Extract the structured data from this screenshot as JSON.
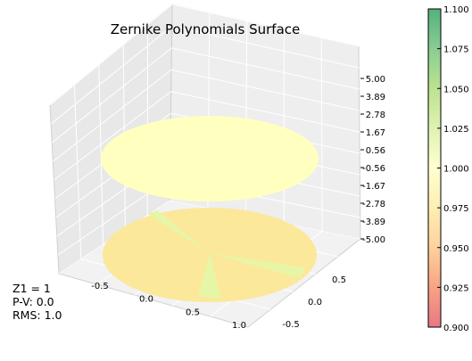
{
  "chart_data": {
    "type": "surface",
    "title": "Zernike Polynomials Surface",
    "xlabel": "",
    "ylabel": "",
    "zlabel": "",
    "x_ticks": [
      "-0.5",
      "0.0",
      "0.5",
      "1.0"
    ],
    "y_ticks": [
      "-0.5",
      "0.0",
      "0.5"
    ],
    "z_ticks": [
      "5.00",
      "3.89",
      "2.78",
      "1.67",
      "0.56",
      "-0.56",
      "-1.67",
      "-2.78",
      "-3.89",
      "-5.00"
    ],
    "zlim": [
      -5.0,
      5.0
    ],
    "surface": {
      "name": "Z1",
      "value": 1.0,
      "color": "#ffffc0"
    },
    "projection": {
      "offset": -5.0,
      "color": "#fbe89a",
      "accent_color": "#e7f6a6"
    },
    "colorbar": {
      "ticks": [
        "1.100",
        "1.075",
        "1.050",
        "1.025",
        "1.000",
        "0.975",
        "0.950",
        "0.925",
        "0.900"
      ],
      "range": [
        0.9,
        1.1
      ],
      "stops": [
        "#e14a5d",
        "#f4855a",
        "#fdc27b",
        "#fee99a",
        "#ffffc0",
        "#d4ee9a",
        "#a6d96a",
        "#63bb6f",
        "#1a9850"
      ]
    },
    "grid": true,
    "pane_color": "#f2f2f2"
  },
  "info": {
    "term": "Z1 = 1",
    "pv": "P-V: 0.0",
    "rms": "RMS: 1.0"
  }
}
